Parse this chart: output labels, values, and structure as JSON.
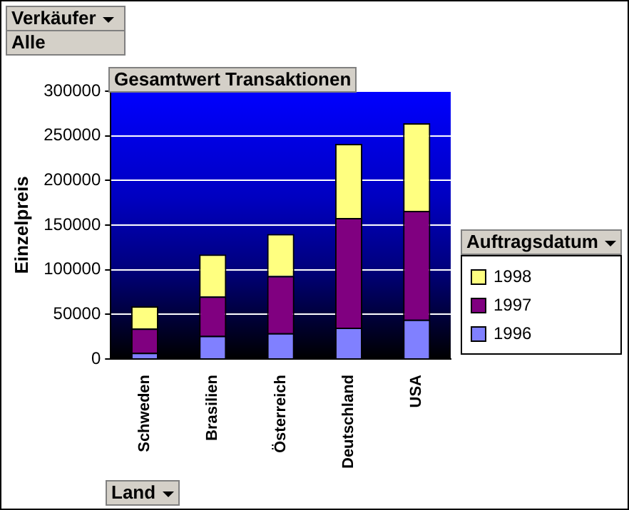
{
  "chart_data": {
    "type": "bar",
    "stacked": true,
    "title": "Gesamtwert Transaktionen",
    "xlabel": "Land",
    "ylabel": "Einzelpreis",
    "legend_title": "Auftragsdatum",
    "legend": "right",
    "annotations": [
      "Verkäufer",
      "Alle"
    ],
    "categories": [
      "Schweden",
      "Brasilien",
      "Österreich",
      "Deutschland",
      "USA"
    ],
    "series": [
      {
        "name": "1996",
        "color": "#8080ff",
        "values": [
          7000,
          26000,
          29000,
          35000,
          44000
        ]
      },
      {
        "name": "1997",
        "color": "#800080",
        "values": [
          27000,
          44000,
          64000,
          123000,
          122000
        ]
      },
      {
        "name": "1998",
        "color": "#ffff80",
        "values": [
          25000,
          47000,
          47000,
          83000,
          98000
        ]
      }
    ],
    "ylim": [
      0,
      300000
    ],
    "yticks": [
      0,
      50000,
      100000,
      150000,
      200000,
      250000,
      300000
    ],
    "grid": "y"
  }
}
